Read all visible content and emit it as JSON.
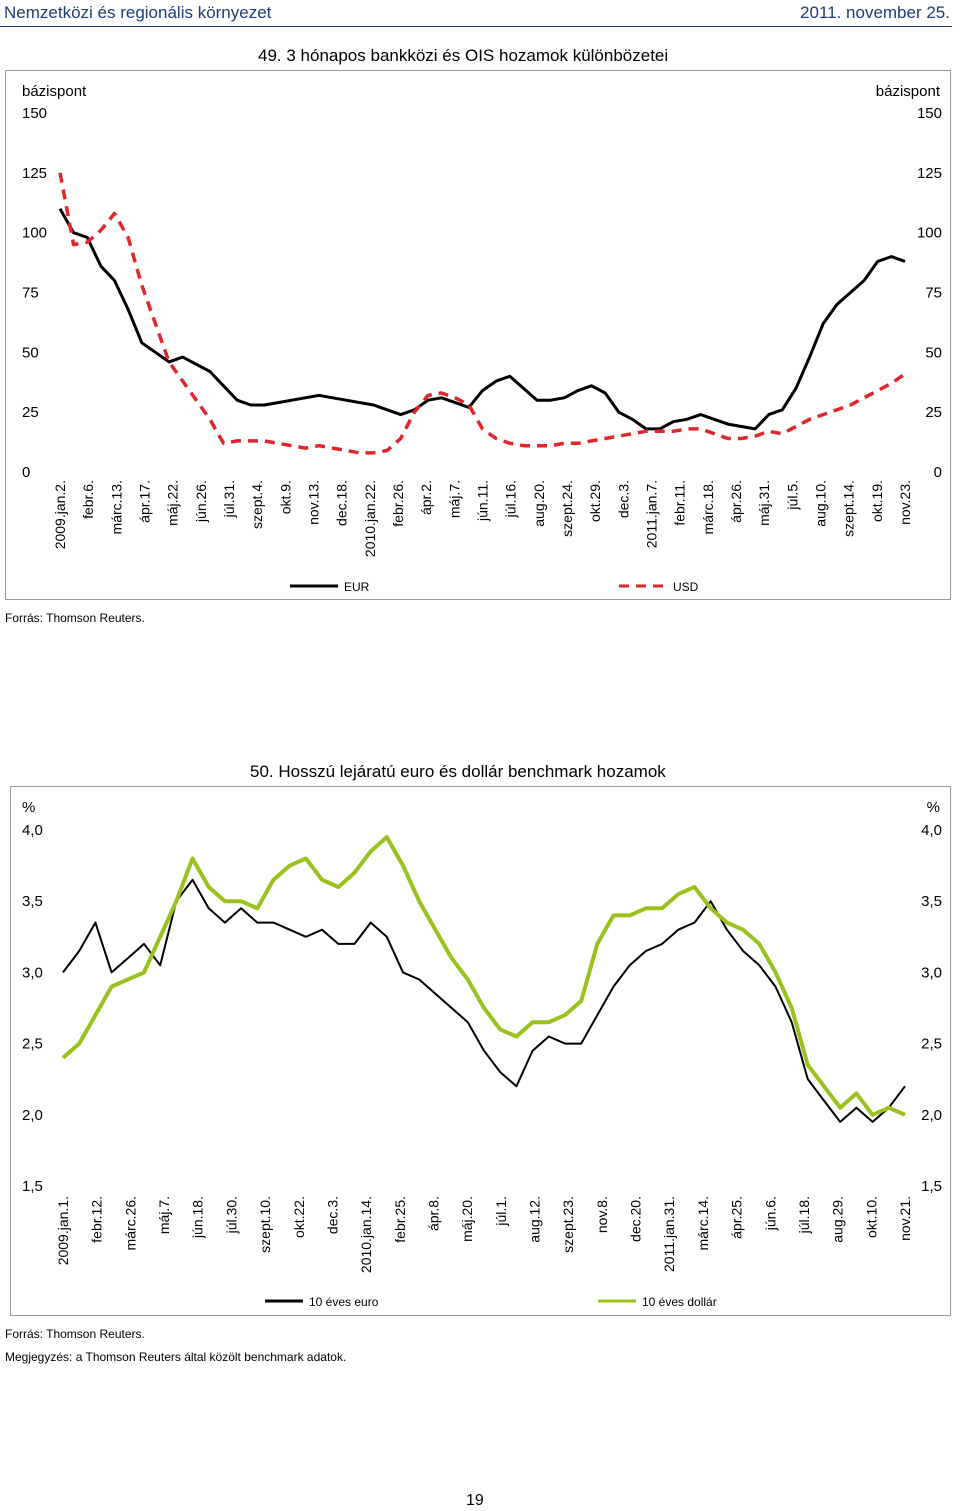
{
  "header": {
    "left": "Nemzetközi és regionális környezet",
    "right": "2011. november 25."
  },
  "chart_data": [
    {
      "type": "line",
      "title": "49. 3 hónapos bankközi és OIS hozamok különbözetei",
      "ylabel_left": "bázispont",
      "ylabel_right": "bázispont",
      "ylim": [
        0,
        150
      ],
      "yticks": [
        "0",
        "25",
        "50",
        "75",
        "100",
        "125",
        "150"
      ],
      "x_tick_labels": [
        "2009.jan.2.",
        "febr.6.",
        "márc.13.",
        "ápr.17.",
        "máj.22.",
        "jún.26.",
        "júl.31.",
        "szept.4.",
        "okt.9.",
        "nov.13.",
        "dec.18.",
        "2010.jan.22.",
        "febr.26.",
        "ápr.2.",
        "máj.7.",
        "jún.11.",
        "júl.16.",
        "aug.20.",
        "szept.24.",
        "okt.29.",
        "dec.3.",
        "2011.jan.7.",
        "febr.11.",
        "márc.18.",
        "ápr.26.",
        "máj.31.",
        "júl.5.",
        "aug.10.",
        "szept.14.",
        "okt.19.",
        "nov.23."
      ],
      "legend_position": "bottom",
      "series": [
        {
          "name": "EUR",
          "color": "#000000",
          "style": "solid",
          "values": [
            110,
            100,
            98,
            86,
            80,
            68,
            54,
            50,
            46,
            48,
            45,
            42,
            36,
            30,
            28,
            28,
            29,
            30,
            31,
            32,
            31,
            30,
            29,
            28,
            26,
            24,
            26,
            30,
            31,
            29,
            27,
            34,
            38,
            40,
            35,
            30,
            30,
            31,
            34,
            36,
            33,
            25,
            22,
            18,
            18,
            21,
            22,
            24,
            22,
            20,
            19,
            18,
            24,
            26,
            35,
            48,
            62,
            70,
            75,
            80,
            88,
            90,
            88
          ]
        },
        {
          "name": "USD",
          "color": "#e0262b",
          "style": "dashed",
          "values": [
            125,
            95,
            96,
            101,
            108,
            98,
            78,
            62,
            46,
            38,
            30,
            22,
            12,
            13,
            13,
            13,
            12,
            11,
            10,
            11,
            10,
            9,
            8,
            8,
            9,
            14,
            25,
            32,
            33,
            31,
            28,
            18,
            14,
            12,
            11,
            11,
            11,
            12,
            12,
            13,
            14,
            15,
            16,
            17,
            17,
            17,
            18,
            18,
            16,
            14,
            14,
            15,
            17,
            16,
            19,
            22,
            24,
            26,
            28,
            31,
            34,
            37,
            41
          ]
        }
      ]
    },
    {
      "type": "line",
      "title": "50. Hosszú lejáratú euro és dollár benchmark hozamok",
      "ylabel_left": "%",
      "ylabel_right": "%",
      "ylim": [
        1.5,
        4.0
      ],
      "yticks": [
        "1,5",
        "2,0",
        "2,5",
        "3,0",
        "3,5",
        "4,0"
      ],
      "x_tick_labels": [
        "2009.jan.1.",
        "febr.12.",
        "márc.26.",
        "máj.7.",
        "jún.18.",
        "júl.30.",
        "szept.10.",
        "okt.22.",
        "dec.3.",
        "2010.jan.14.",
        "febr.25.",
        "ápr.8.",
        "máj.20.",
        "júl.1.",
        "aug.12.",
        "szept.23.",
        "nov.8.",
        "dec.20.",
        "2011.jan.31.",
        "márc.14.",
        "ápr.25.",
        "jún.6.",
        "júl.18.",
        "aug.29.",
        "okt.10.",
        "nov.21."
      ],
      "legend_position": "bottom",
      "series": [
        {
          "name": "10 éves euro",
          "color": "#000000",
          "style": "solid",
          "values": [
            3.0,
            3.15,
            3.35,
            3.0,
            3.1,
            3.2,
            3.05,
            3.5,
            3.65,
            3.45,
            3.35,
            3.45,
            3.35,
            3.35,
            3.3,
            3.25,
            3.3,
            3.2,
            3.2,
            3.35,
            3.25,
            3.0,
            2.95,
            2.85,
            2.75,
            2.65,
            2.45,
            2.3,
            2.2,
            2.45,
            2.55,
            2.5,
            2.5,
            2.7,
            2.9,
            3.05,
            3.15,
            3.2,
            3.3,
            3.35,
            3.5,
            3.3,
            3.15,
            3.05,
            2.9,
            2.65,
            2.25,
            2.1,
            1.95,
            2.05,
            1.95,
            2.05,
            2.2
          ]
        },
        {
          "name": "10 éves dollár",
          "color": "#9bc11d",
          "style": "solid",
          "values": [
            2.4,
            2.5,
            2.7,
            2.9,
            2.95,
            3.0,
            3.25,
            3.5,
            3.8,
            3.6,
            3.5,
            3.5,
            3.45,
            3.65,
            3.75,
            3.8,
            3.65,
            3.6,
            3.7,
            3.85,
            3.95,
            3.75,
            3.5,
            3.3,
            3.1,
            2.95,
            2.75,
            2.6,
            2.55,
            2.65,
            2.65,
            2.7,
            2.8,
            3.2,
            3.4,
            3.4,
            3.45,
            3.45,
            3.55,
            3.6,
            3.45,
            3.35,
            3.3,
            3.2,
            3.0,
            2.75,
            2.35,
            2.2,
            2.05,
            2.15,
            2.0,
            2.05,
            2.0
          ]
        }
      ]
    }
  ],
  "sources": {
    "chart1": "Forrás: Thomson Reuters.",
    "chart2_source": "Forrás: Thomson Reuters.",
    "chart2_note": "Megjegyzés: a Thomson Reuters által közölt benchmark adatok."
  },
  "page_number": "19"
}
